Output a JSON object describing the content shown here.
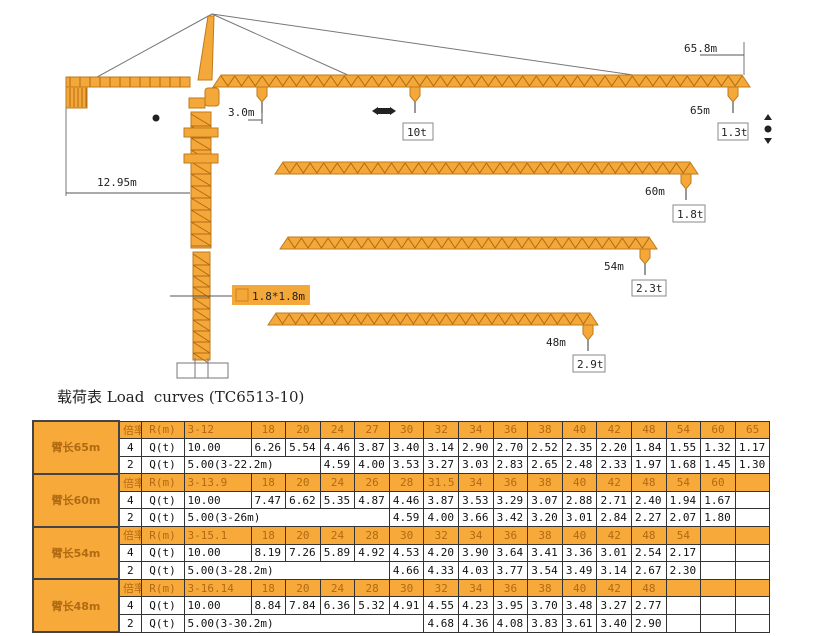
{
  "colors": {
    "truss": "#f4a83a",
    "table_header": "#f7a93a",
    "label_cell": "#c9c9c9"
  },
  "diagram": {
    "counter_jib_radius": "12.95m",
    "mast_section": "1.8*1.8m",
    "max_jib": "65.8m",
    "min_radius": "3.0m",
    "max_load": "10t",
    "jibs": [
      {
        "radius": "65m",
        "tip_load": "1.3t"
      },
      {
        "radius": "60m",
        "tip_load": "1.8t"
      },
      {
        "radius": "54m",
        "tip_load": "2.3t"
      },
      {
        "radius": "48m",
        "tip_load": "2.9t"
      }
    ],
    "icons": [
      "trolley-travel-icon",
      "slewing-dot-icon",
      "hoist-up-down-icon"
    ]
  },
  "table": {
    "title": "载荷表 Load  curves (TC6513-10)",
    "sections": [
      {
        "label": "臂长65m",
        "ratio_label": "倍率",
        "r_label": "R(m)",
        "q_label": "Q(t)",
        "radii": [
          "3-12",
          "18",
          "20",
          "24",
          "27",
          "30",
          "32",
          "34",
          "36",
          "38",
          "40",
          "42",
          "48",
          "54",
          "60",
          "65"
        ],
        "row4": {
          "ratio": "4",
          "values": [
            "10.00",
            "6.26",
            "5.54",
            "4.46",
            "3.87",
            "3.40",
            "3.14",
            "2.90",
            "2.70",
            "2.52",
            "2.35",
            "2.20",
            "1.84",
            "1.55",
            "1.32",
            "1.17"
          ]
        },
        "row2": {
          "ratio": "2",
          "span_text": "5.00(3-22.2m)",
          "span": 3,
          "values": [
            "4.59",
            "4.00",
            "3.53",
            "3.27",
            "3.03",
            "2.83",
            "2.65",
            "2.48",
            "2.33",
            "1.97",
            "1.68",
            "1.45",
            "1.30"
          ]
        }
      },
      {
        "label": "臂长60m",
        "ratio_label": "倍率",
        "r_label": "R(m)",
        "q_label": "Q(t)",
        "radii": [
          "3-13.9",
          "18",
          "20",
          "24",
          "26",
          "28",
          "31.5",
          "34",
          "36",
          "38",
          "40",
          "42",
          "48",
          "54",
          "60"
        ],
        "row4": {
          "ratio": "4",
          "values": [
            "10.00",
            "7.47",
            "6.62",
            "5.35",
            "4.87",
            "4.46",
            "3.87",
            "3.53",
            "3.29",
            "3.07",
            "2.88",
            "2.71",
            "2.40",
            "1.94",
            "1.67"
          ]
        },
        "row2": {
          "ratio": "2",
          "span_text": "5.00(3-26m)",
          "span": 5,
          "values": [
            "4.59",
            "4.00",
            "3.66",
            "3.42",
            "3.20",
            "3.01",
            "2.84",
            "2.27",
            "2.07",
            "1.80"
          ]
        }
      },
      {
        "label": "臂长54m",
        "ratio_label": "倍率",
        "r_label": "R(m)",
        "q_label": "Q(t)",
        "radii": [
          "3-15.1",
          "18",
          "20",
          "24",
          "28",
          "30",
          "32",
          "34",
          "36",
          "38",
          "40",
          "42",
          "48",
          "54"
        ],
        "row4": {
          "ratio": "4",
          "values": [
            "10.00",
            "8.19",
            "7.26",
            "5.89",
            "4.92",
            "4.53",
            "4.20",
            "3.90",
            "3.64",
            "3.41",
            "3.36",
            "3.01",
            "2.54",
            "2.17"
          ]
        },
        "row2": {
          "ratio": "2",
          "span_text": "5.00(3-28.2m)",
          "span": 5,
          "values": [
            "4.66",
            "4.33",
            "4.03",
            "3.77",
            "3.54",
            "3.49",
            "3.14",
            "2.67",
            "2.30"
          ]
        }
      },
      {
        "label": "臂长48m",
        "ratio_label": "倍率",
        "r_label": "R(m)",
        "q_label": "Q(t)",
        "radii": [
          "3-16.14",
          "18",
          "20",
          "24",
          "28",
          "30",
          "32",
          "34",
          "36",
          "38",
          "40",
          "42",
          "48"
        ],
        "row4": {
          "ratio": "4",
          "values": [
            "10.00",
            "8.84",
            "7.84",
            "6.36",
            "5.32",
            "4.91",
            "4.55",
            "4.23",
            "3.95",
            "3.70",
            "3.48",
            "3.27",
            "2.77"
          ]
        },
        "row2": {
          "ratio": "2",
          "span_text": "5.00(3-30.2m)",
          "span": 6,
          "values": [
            "4.68",
            "4.36",
            "4.08",
            "3.83",
            "3.61",
            "3.40",
            "2.90"
          ]
        }
      }
    ]
  }
}
